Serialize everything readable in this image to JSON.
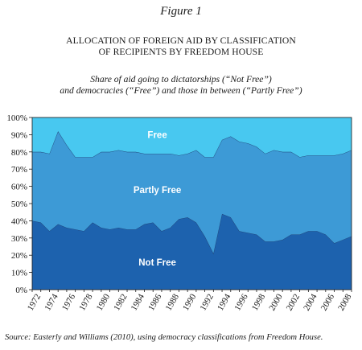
{
  "figure_label": "Figure 1",
  "source_note": "Source: Easterly and Williams (2010), using democracy classifications from Freedom House.",
  "colors": {
    "free": "#48c8f0",
    "partly_free": "#3d9ad6",
    "not_free": "#1d62ae",
    "outline": "#1f3f72"
  },
  "chart_data": {
    "type": "area",
    "stacked": true,
    "title_lines": [
      "ALLOCATION OF FOREIGN AID BY CLASSIFICATION",
      "OF RECIPIENTS BY FREEDOM HOUSE"
    ],
    "subtitle_lines": [
      "Share of aid going to dictatorships (“Not Free”)",
      "and democracies (“Free”) and those in between (“Partly Free”)"
    ],
    "xlabel": "",
    "ylabel": "",
    "ylim": [
      0,
      100
    ],
    "xlim": [
      1972,
      2009
    ],
    "y_ticks": [
      0,
      10,
      20,
      30,
      40,
      50,
      60,
      70,
      80,
      90,
      100
    ],
    "y_tick_labels": [
      "0%",
      "10%",
      "20%",
      "30%",
      "40%",
      "50%",
      "60%",
      "70%",
      "80%",
      "90%",
      "100%"
    ],
    "x_tick_labels": [
      "1972",
      "1974",
      "1976",
      "1978",
      "1980",
      "1982",
      "1984",
      "1986",
      "1988",
      "1990",
      "1992",
      "1994",
      "1996",
      "1998",
      "2000",
      "2002",
      "2004",
      "2006",
      "2008"
    ],
    "grid": false,
    "legend": "none",
    "x": [
      1972,
      1973,
      1974,
      1975,
      1976,
      1977,
      1978,
      1979,
      1980,
      1981,
      1982,
      1983,
      1984,
      1985,
      1986,
      1987,
      1988,
      1989,
      1990,
      1991,
      1992,
      1993,
      1994,
      1995,
      1996,
      1997,
      1998,
      1999,
      2000,
      2001,
      2002,
      2003,
      2004,
      2005,
      2006,
      2007,
      2008,
      2009
    ],
    "series": [
      {
        "name": "Not Free",
        "label_x": 1986.5,
        "label_y": 16,
        "values": [
          40,
          39,
          34,
          38,
          36,
          35,
          34,
          39,
          36,
          35,
          36,
          35,
          35,
          38,
          39,
          34,
          36,
          41,
          42,
          39,
          31,
          21,
          44,
          42,
          34,
          33,
          32,
          28,
          28,
          29,
          32,
          32,
          34,
          34,
          32,
          27,
          29,
          31
        ]
      },
      {
        "name": "Partly Free",
        "label_x": 1986.5,
        "label_y": 58,
        "values": [
          40,
          41,
          45,
          54,
          48,
          42,
          43,
          38,
          44,
          45,
          45,
          45,
          45,
          41,
          40,
          45,
          43,
          37,
          37,
          42,
          46,
          56,
          43,
          47,
          52,
          52,
          51,
          51,
          53,
          51,
          48,
          45,
          44,
          44,
          46,
          51,
          50,
          50
        ]
      },
      {
        "name": "Free",
        "label_x": 1986.5,
        "label_y": 90,
        "values": [
          20,
          20,
          21,
          8,
          16,
          23,
          23,
          23,
          20,
          20,
          19,
          20,
          20,
          21,
          21,
          21,
          21,
          22,
          21,
          19,
          23,
          23,
          13,
          11,
          14,
          15,
          17,
          21,
          19,
          20,
          20,
          23,
          22,
          22,
          22,
          22,
          21,
          19
        ]
      }
    ]
  }
}
